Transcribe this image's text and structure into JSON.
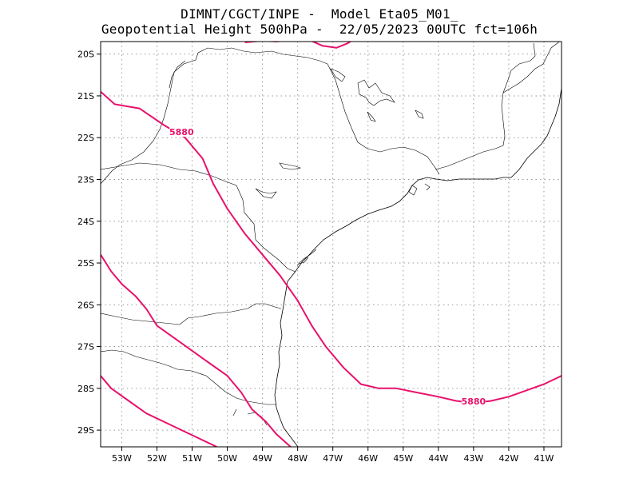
{
  "header": {
    "line1": "DIMNT/CGCT/INPE -  Model Eta05_M01_",
    "line2": "Geopotential Height 500hPa -  22/05/2023 00UTC fct=106h"
  },
  "map": {
    "lat_labels": [
      "20S",
      "21S",
      "22S",
      "23S",
      "24S",
      "25S",
      "26S",
      "27S",
      "28S",
      "29S"
    ],
    "lon_labels": [
      "53W",
      "52W",
      "51W",
      "50W",
      "49W",
      "48W",
      "47W",
      "46W",
      "45W",
      "44W",
      "43W",
      "42W",
      "41W"
    ],
    "contour_labels": [
      "5880",
      "5880"
    ],
    "contour_color": "#e8116b",
    "coast_color": "#000000",
    "grid_color": "#9a9a9a"
  },
  "chart_data": {
    "type": "map",
    "lon_range": [
      -53.6,
      -40.5
    ],
    "lat_range": [
      -29.4,
      -19.7
    ],
    "contour_level": 5880,
    "contours": [
      {
        "label": "5880",
        "points": [
          [
            -53.6,
            -20.9
          ],
          [
            -53.2,
            -21.2
          ],
          [
            -52.5,
            -21.3
          ],
          [
            -51.8,
            -21.7
          ],
          [
            -51.2,
            -22.0
          ],
          [
            -50.7,
            -22.5
          ],
          [
            -50.4,
            -23.1
          ],
          [
            -50.0,
            -23.7
          ],
          [
            -49.5,
            -24.3
          ],
          [
            -48.9,
            -24.9
          ],
          [
            -48.5,
            -25.3
          ],
          [
            -48.0,
            -25.9
          ],
          [
            -47.6,
            -26.5
          ],
          [
            -47.2,
            -27.0
          ],
          [
            -46.7,
            -27.5
          ],
          [
            -46.2,
            -27.9
          ],
          [
            -45.7,
            -28.0
          ],
          [
            -45.2,
            -28.0
          ],
          [
            -44.6,
            -28.1
          ],
          [
            -44.0,
            -28.2
          ],
          [
            -43.5,
            -28.3
          ],
          [
            -43.0,
            -28.35
          ],
          [
            -42.5,
            -28.3
          ],
          [
            -42.0,
            -28.2
          ],
          [
            -41.5,
            -28.05
          ],
          [
            -41.0,
            -27.9
          ],
          [
            -40.5,
            -27.7
          ]
        ]
      },
      {
        "label": "",
        "points": [
          [
            -53.6,
            -24.8
          ],
          [
            -53.3,
            -25.2
          ],
          [
            -53.0,
            -25.5
          ],
          [
            -52.6,
            -25.8
          ],
          [
            -52.3,
            -26.1
          ],
          [
            -52.0,
            -26.5
          ],
          [
            -51.5,
            -26.8
          ],
          [
            -51.0,
            -27.1
          ],
          [
            -50.5,
            -27.4
          ],
          [
            -50.0,
            -27.7
          ],
          [
            -49.6,
            -28.1
          ],
          [
            -49.3,
            -28.5
          ],
          [
            -48.9,
            -28.8
          ],
          [
            -48.6,
            -29.1
          ],
          [
            -48.2,
            -29.4
          ]
        ]
      },
      {
        "label": "",
        "points": [
          [
            -53.6,
            -27.7
          ],
          [
            -53.3,
            -28.0
          ],
          [
            -52.8,
            -28.3
          ],
          [
            -52.3,
            -28.6
          ],
          [
            -51.8,
            -28.8
          ],
          [
            -51.3,
            -29.0
          ],
          [
            -50.8,
            -29.2
          ],
          [
            -50.3,
            -29.4
          ]
        ]
      },
      {
        "label": "",
        "points": [
          [
            -49.5,
            -19.72
          ],
          [
            -49.0,
            -19.68
          ],
          [
            -48.6,
            -19.7
          ],
          [
            -48.4,
            -19.68
          ]
        ]
      },
      {
        "label": "",
        "points": [
          [
            -47.7,
            -19.65
          ],
          [
            -47.3,
            -19.8
          ],
          [
            -46.9,
            -19.85
          ],
          [
            -46.6,
            -19.75
          ],
          [
            -46.4,
            -19.65
          ]
        ]
      }
    ]
  }
}
